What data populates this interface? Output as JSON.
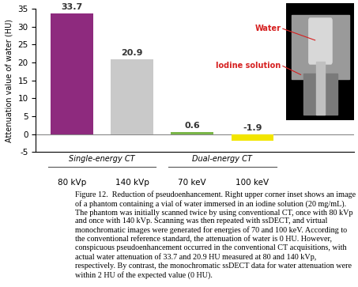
{
  "chart_data": {
    "type": "bar",
    "ylabel": "Attenuation value of water (HU)",
    "categories": [
      "80 kVp",
      "140 kVp",
      "70 keV",
      "100 keV"
    ],
    "values": [
      33.7,
      20.9,
      0.6,
      -1.9
    ],
    "colors": [
      "#8e2a7e",
      "#c9c9c9",
      "#7ab648",
      "#f2e500"
    ],
    "groups": [
      {
        "label": "Single-energy CT",
        "categories": [
          "80 kVp",
          "140 kVp"
        ]
      },
      {
        "label": "Dual-energy CT",
        "categories": [
          "70 keV",
          "100 keV"
        ]
      }
    ],
    "ylim": [
      -5,
      35
    ],
    "yticks": [
      -5,
      0,
      5,
      10,
      15,
      20,
      25,
      30,
      35
    ],
    "data_labels": true,
    "grid": false,
    "inset_labels": [
      "Water",
      "Iodine solution"
    ]
  },
  "caption": "Figure 12.  Reduction of pseudoenhancement. Right upper corner inset shows an image of a phantom containing a vial of water immersed in an iodine solution (20 mg/mL). The phantom was initially scanned twice by using conventional CT, once with 80 kVp and once with 140 kVp. Scanning was then repeated with ssDECT, and virtual monochromatic images were generated for energies of 70 and 100 keV. According to the conventional reference standard, the attenuation of water is 0 HU. However, conspicuous pseudoenhancement occurred in the conventional CT acquisitions, with actual water attenuation of 33.7 and 20.9 HU measured at 80 and 140 kVp, respectively. By contrast, the monochromatic ssDECT data for water attenuation were within 2 HU of the expected value (0 HU)."
}
